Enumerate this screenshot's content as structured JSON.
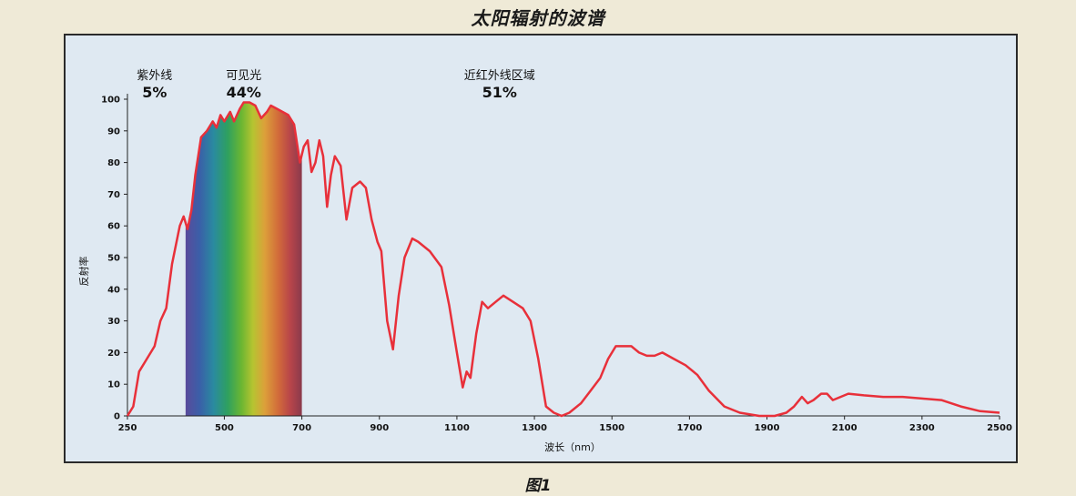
{
  "page": {
    "title": "太阳辐射的波谱",
    "caption": "图1"
  },
  "colors": {
    "curve": "#e8303a",
    "panel": "#dfe9f2",
    "frame": "#2a2a2a"
  },
  "chart_data": {
    "type": "line",
    "title": "太阳辐射的波谱",
    "xlabel": "波长（nm）",
    "ylabel": "反射率",
    "xlim": [
      250,
      2500
    ],
    "ylim": [
      0,
      100
    ],
    "x_ticks": [
      250,
      500,
      700,
      900,
      1100,
      1300,
      1500,
      1700,
      1900,
      2100,
      2300,
      2500
    ],
    "y_ticks": [
      0,
      10,
      20,
      30,
      40,
      50,
      60,
      70,
      80,
      90,
      100
    ],
    "grid": false,
    "visible_spectrum_band": [
      400,
      700
    ],
    "regions": [
      {
        "name": "紫外线",
        "percent": "5%",
        "center_x": 320
      },
      {
        "name": "可见光",
        "percent": "44%",
        "center_x": 550
      },
      {
        "name": "近红外线区域",
        "percent": "51%",
        "center_x": 1210
      }
    ],
    "series": [
      {
        "points": [
          [
            250,
            0
          ],
          [
            265,
            3
          ],
          [
            280,
            14
          ],
          [
            300,
            18
          ],
          [
            320,
            22
          ],
          [
            335,
            30
          ],
          [
            350,
            34
          ],
          [
            365,
            48
          ],
          [
            385,
            60
          ],
          [
            395,
            63
          ],
          [
            405,
            59
          ],
          [
            415,
            65
          ],
          [
            425,
            76
          ],
          [
            440,
            88
          ],
          [
            455,
            90
          ],
          [
            470,
            93
          ],
          [
            480,
            91
          ],
          [
            490,
            95
          ],
          [
            500,
            93
          ],
          [
            515,
            96
          ],
          [
            525,
            93
          ],
          [
            540,
            97
          ],
          [
            550,
            99
          ],
          [
            565,
            99
          ],
          [
            580,
            98
          ],
          [
            595,
            94
          ],
          [
            610,
            96
          ],
          [
            620,
            98
          ],
          [
            635,
            97
          ],
          [
            650,
            96
          ],
          [
            665,
            95
          ],
          [
            680,
            92
          ],
          [
            695,
            80
          ],
          [
            705,
            85
          ],
          [
            715,
            87
          ],
          [
            725,
            77
          ],
          [
            735,
            80
          ],
          [
            745,
            87
          ],
          [
            755,
            82
          ],
          [
            765,
            66
          ],
          [
            775,
            76
          ],
          [
            785,
            82
          ],
          [
            800,
            79
          ],
          [
            815,
            62
          ],
          [
            830,
            72
          ],
          [
            850,
            74
          ],
          [
            865,
            72
          ],
          [
            880,
            62
          ],
          [
            895,
            55
          ],
          [
            905,
            52
          ],
          [
            920,
            30
          ],
          [
            935,
            21
          ],
          [
            950,
            38
          ],
          [
            965,
            50
          ],
          [
            985,
            56
          ],
          [
            1000,
            55
          ],
          [
            1030,
            52
          ],
          [
            1060,
            47
          ],
          [
            1080,
            35
          ],
          [
            1100,
            20
          ],
          [
            1115,
            9
          ],
          [
            1125,
            14
          ],
          [
            1135,
            12
          ],
          [
            1150,
            26
          ],
          [
            1165,
            36
          ],
          [
            1180,
            34
          ],
          [
            1200,
            36
          ],
          [
            1220,
            38
          ],
          [
            1245,
            36
          ],
          [
            1270,
            34
          ],
          [
            1290,
            30
          ],
          [
            1310,
            18
          ],
          [
            1330,
            3
          ],
          [
            1350,
            1
          ],
          [
            1370,
            0
          ],
          [
            1390,
            1
          ],
          [
            1420,
            4
          ],
          [
            1445,
            8
          ],
          [
            1470,
            12
          ],
          [
            1490,
            18
          ],
          [
            1510,
            22
          ],
          [
            1535,
            22
          ],
          [
            1550,
            22
          ],
          [
            1570,
            20
          ],
          [
            1590,
            19
          ],
          [
            1610,
            19
          ],
          [
            1630,
            20
          ],
          [
            1660,
            18
          ],
          [
            1690,
            16
          ],
          [
            1720,
            13
          ],
          [
            1750,
            8
          ],
          [
            1790,
            3
          ],
          [
            1830,
            1
          ],
          [
            1880,
            0
          ],
          [
            1920,
            0
          ],
          [
            1950,
            1
          ],
          [
            1970,
            3
          ],
          [
            1990,
            6
          ],
          [
            2005,
            4
          ],
          [
            2020,
            5
          ],
          [
            2040,
            7
          ],
          [
            2055,
            7
          ],
          [
            2070,
            5
          ],
          [
            2090,
            6
          ],
          [
            2110,
            7
          ],
          [
            2150,
            6.5
          ],
          [
            2200,
            6
          ],
          [
            2250,
            6
          ],
          [
            2300,
            5.5
          ],
          [
            2350,
            5
          ],
          [
            2400,
            3
          ],
          [
            2450,
            1.5
          ],
          [
            2500,
            1
          ]
        ]
      }
    ]
  }
}
